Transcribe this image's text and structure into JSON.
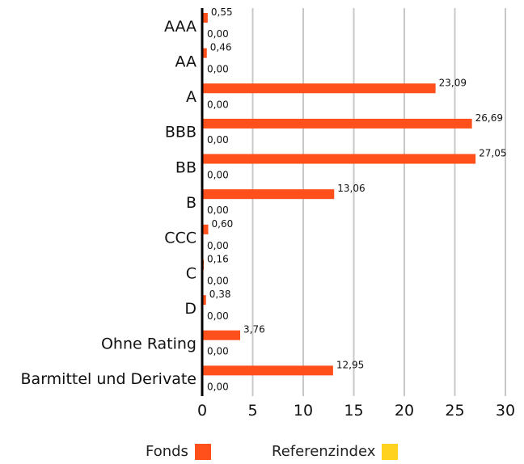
{
  "chart_data": {
    "type": "bar",
    "orientation": "horizontal",
    "categories": [
      "AAA",
      "AA",
      "A",
      "BBB",
      "BB",
      "B",
      "CCC",
      "C",
      "D",
      "Ohne Rating",
      "Barmittel und Derivate"
    ],
    "series": [
      {
        "name": "Fonds",
        "color": "#ff4f1a",
        "values": [
          0.55,
          0.46,
          23.09,
          26.69,
          27.05,
          13.06,
          0.6,
          0.16,
          0.38,
          3.76,
          12.95
        ],
        "labels": [
          "0,55",
          "0,46",
          "23,09",
          "26,69",
          "27,05",
          "13,06",
          "0,60",
          "0,16",
          "0,38",
          "3,76",
          "12,95"
        ]
      },
      {
        "name": "Referenzindex",
        "color": "#ffd21f",
        "values": [
          0,
          0,
          0,
          0,
          0,
          0,
          0,
          0,
          0,
          0,
          0
        ],
        "labels": [
          "0,00",
          "0,00",
          "0,00",
          "0,00",
          "0,00",
          "0,00",
          "0,00",
          "0,00",
          "0,00",
          "0,00",
          "0,00"
        ]
      }
    ],
    "xlim": [
      0,
      30
    ],
    "xticks": [
      0,
      5,
      10,
      15,
      20,
      25,
      30
    ],
    "grid": true,
    "legend_position": "bottom"
  }
}
